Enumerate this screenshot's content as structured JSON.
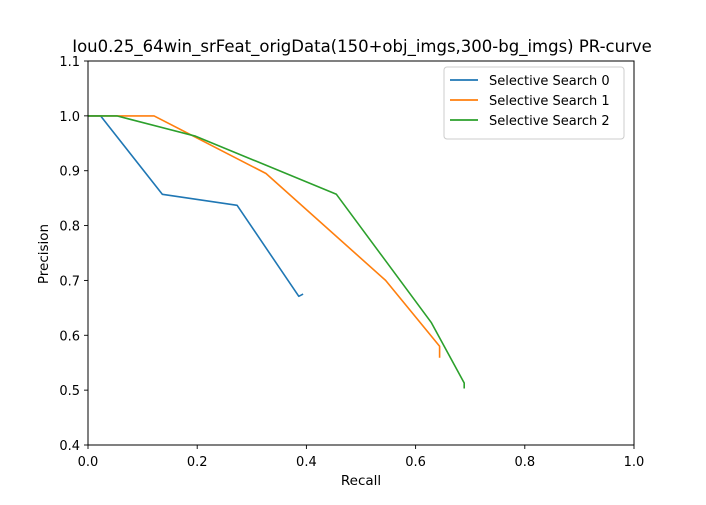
{
  "chart_data": {
    "type": "line",
    "title": "Iou0.25_64win_srFeat_origData(150+obj_imgs,300-bg_imgs) PR-curve",
    "xlabel": "Recall",
    "ylabel": "Precision",
    "xlim": [
      0.0,
      1.0
    ],
    "ylim": [
      0.4,
      1.1
    ],
    "xticks": [
      "0.0",
      "0.2",
      "0.4",
      "0.6",
      "0.8",
      "1.0"
    ],
    "yticks": [
      "0.4",
      "0.5",
      "0.6",
      "0.7",
      "0.8",
      "0.9",
      "1.0",
      "1.1"
    ],
    "grid": false,
    "legend_position": "upper right",
    "series": [
      {
        "name": "Selective Search 0",
        "color": "#1f77b4",
        "x": [
          0.0,
          0.023,
          0.136,
          0.273,
          0.386,
          0.394
        ],
        "y": [
          1.0,
          1.0,
          0.857,
          0.837,
          0.671,
          0.675
        ]
      },
      {
        "name": "Selective Search 1",
        "color": "#ff7f0e",
        "x": [
          0.0,
          0.121,
          0.326,
          0.545,
          0.644,
          0.644
        ],
        "y": [
          1.0,
          1.0,
          0.895,
          0.7,
          0.58,
          0.559
        ]
      },
      {
        "name": "Selective Search 2",
        "color": "#2ca02c",
        "x": [
          0.0,
          0.053,
          0.197,
          0.455,
          0.629,
          0.689,
          0.689
        ],
        "y": [
          1.0,
          1.0,
          0.963,
          0.857,
          0.623,
          0.513,
          0.503
        ]
      }
    ]
  }
}
